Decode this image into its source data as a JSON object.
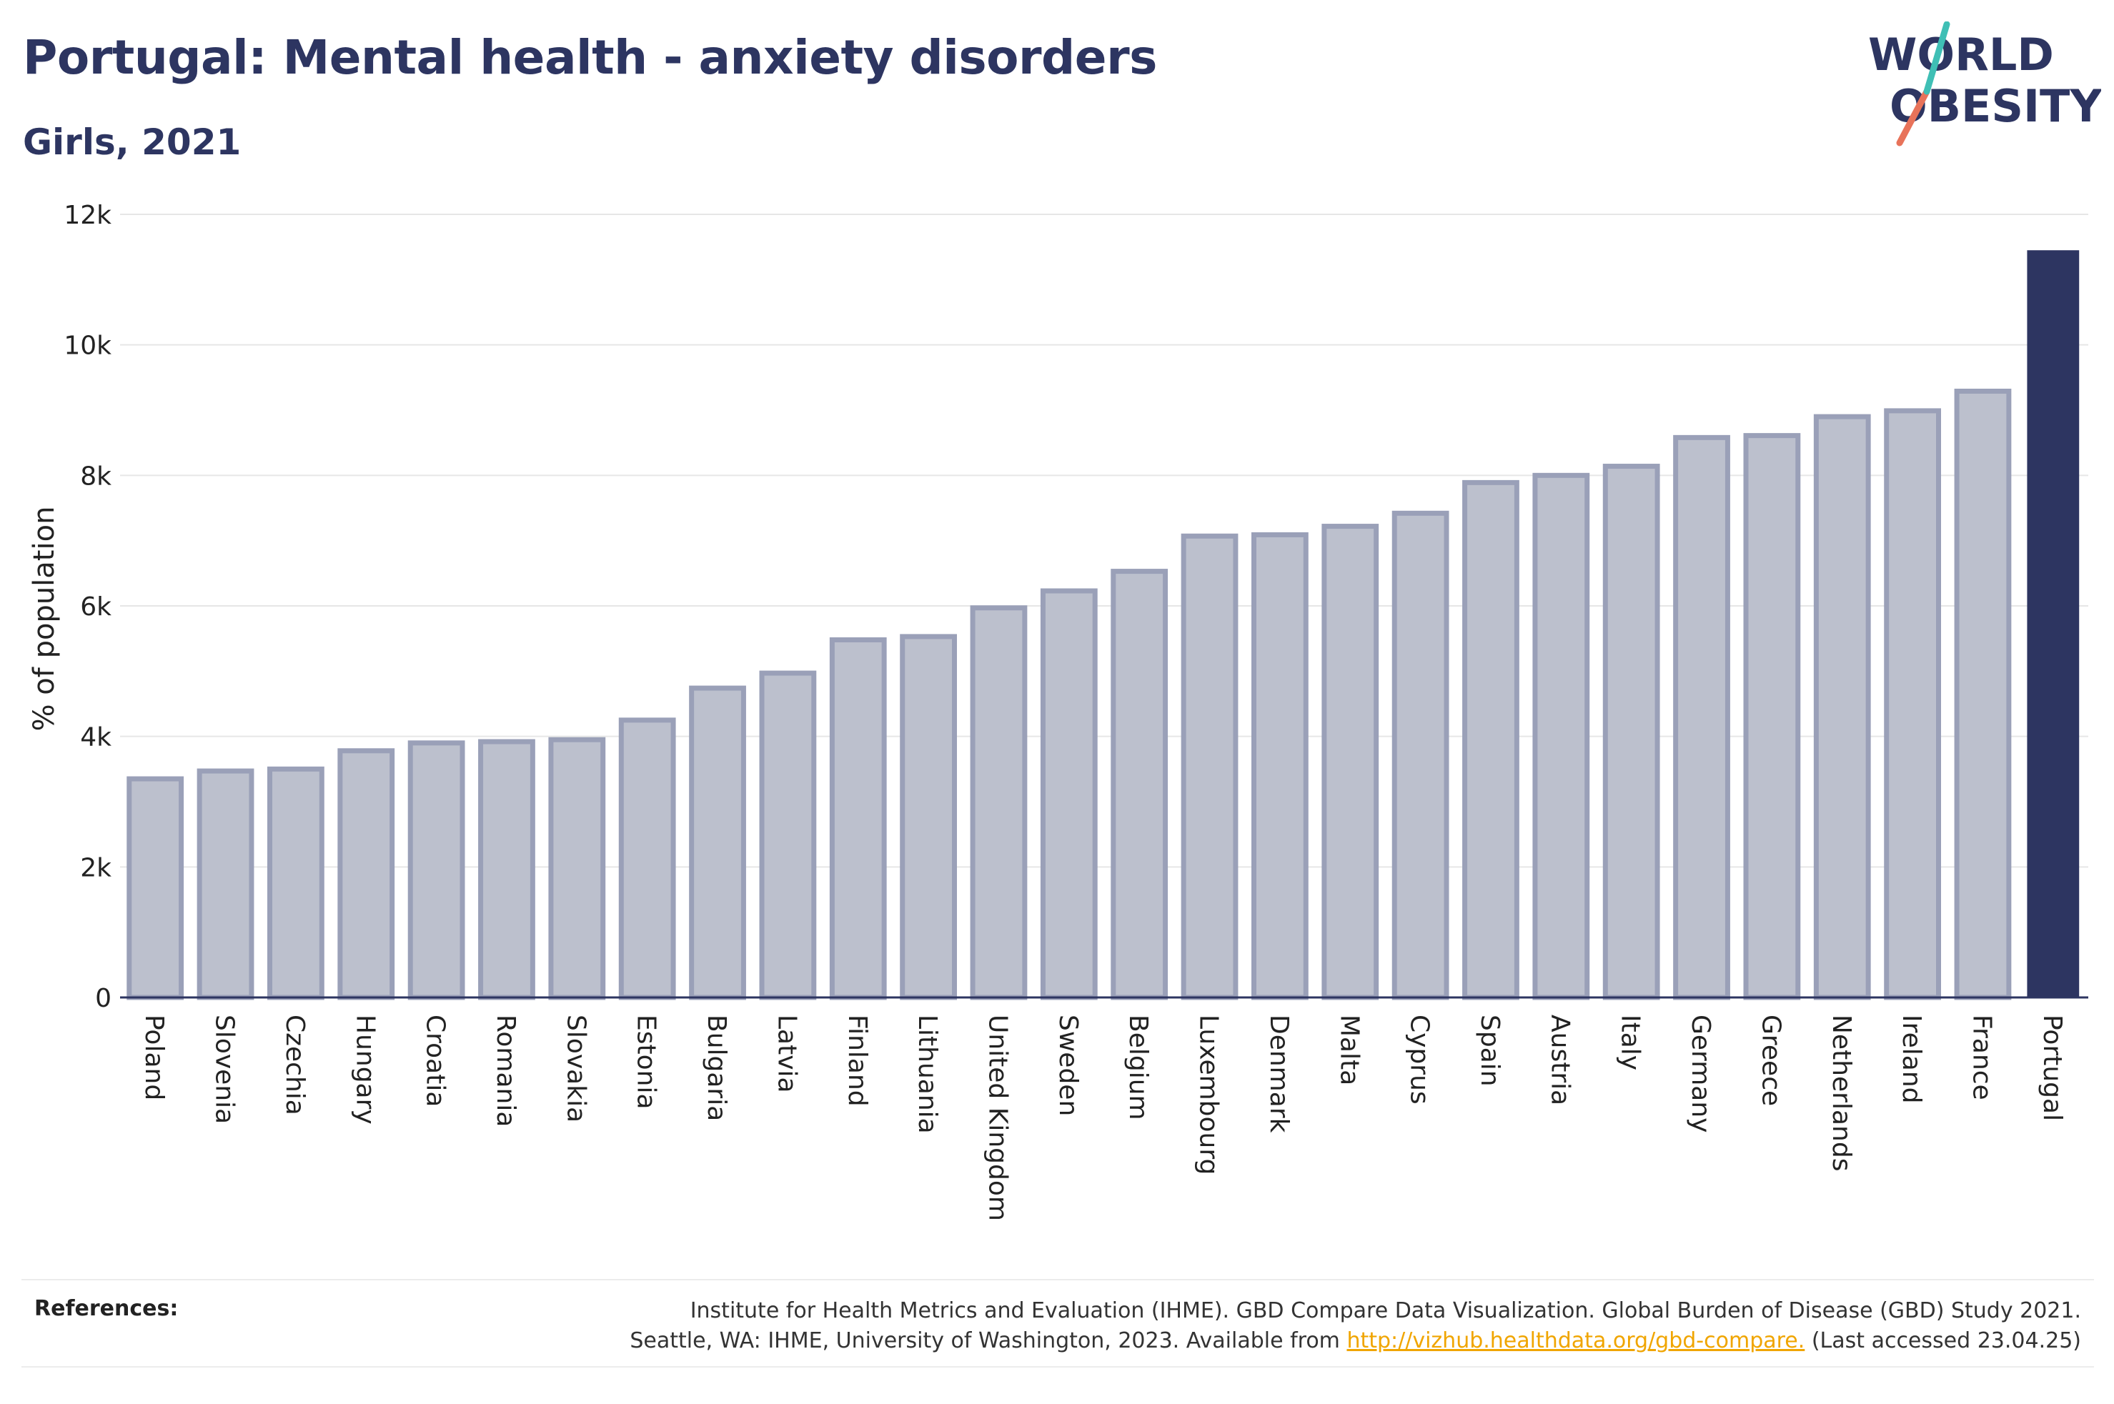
{
  "header": {
    "title": "Portugal: Mental health - anxiety disorders",
    "subtitle": "Girls, 2021"
  },
  "logo": {
    "line1": "WORLD",
    "line2": "OBESITY",
    "accent_teal": "#3fbfb5",
    "accent_coral": "#e8735a",
    "text_color": "#2d3561"
  },
  "colors": {
    "highlight_bar": "#2d3561",
    "other_bar_fill": "#bcc0cd",
    "other_bar_stroke": "#9aa0b8",
    "grid": "#e6e6e6"
  },
  "chart_data": {
    "type": "bar",
    "ylabel": "% of population",
    "ylim": [
      0,
      12000
    ],
    "yticks": [
      0,
      2000,
      4000,
      6000,
      8000,
      10000,
      12000
    ],
    "ytick_labels": [
      "0",
      "2k",
      "4k",
      "6k",
      "8k",
      "10k",
      "12k"
    ],
    "highlight": "Portugal",
    "categories": [
      "Poland",
      "Slovenia",
      "Czechia",
      "Hungary",
      "Croatia",
      "Romania",
      "Slovakia",
      "Estonia",
      "Bulgaria",
      "Latvia",
      "Finland",
      "Lithuania",
      "United Kingdom",
      "Sweden",
      "Belgium",
      "Luxembourg",
      "Denmark",
      "Malta",
      "Cyprus",
      "Spain",
      "Austria",
      "Italy",
      "Germany",
      "Greece",
      "Netherlands",
      "Ireland",
      "France",
      "Portugal"
    ],
    "values": [
      3350,
      3470,
      3500,
      3780,
      3900,
      3920,
      3950,
      4250,
      4740,
      4970,
      5480,
      5530,
      5970,
      6230,
      6530,
      7070,
      7090,
      7220,
      7420,
      7890,
      8000,
      8140,
      8580,
      8610,
      8900,
      8990,
      9290,
      11450
    ],
    "grid": true
  },
  "references": {
    "label": "References:",
    "line1": "Institute for Health Metrics and Evaluation (IHME). GBD Compare Data Visualization. Global Burden of Disease (GBD) Study 2021.",
    "line2_prefix": "Seattle, WA: IHME, University of Washington, 2023. Available from ",
    "link": "http://vizhub.healthdata.org/gbd-compare.",
    "line2_suffix": " (Last accessed 23.04.25)"
  }
}
